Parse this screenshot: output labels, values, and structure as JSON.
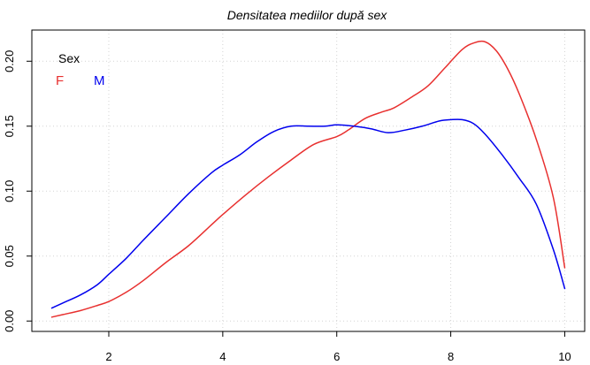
{
  "chart_data": {
    "type": "line",
    "title": "Densitatea mediilor după sex",
    "xlabel": "",
    "ylabel": "",
    "xlim": [
      0.65,
      10.35
    ],
    "ylim": [
      -0.008,
      0.224
    ],
    "x_ticks": [
      2,
      4,
      6,
      8,
      10
    ],
    "x_tick_labels": [
      "2",
      "4",
      "6",
      "8",
      "10"
    ],
    "y_ticks": [
      0.0,
      0.05,
      0.1,
      0.15,
      0.2
    ],
    "y_tick_labels": [
      "0.00",
      "0.05",
      "0.10",
      "0.15",
      "0.20"
    ],
    "grid": true,
    "legend": {
      "title": "Sex",
      "position": "top-left",
      "entries": [
        "F",
        "M"
      ]
    },
    "series": [
      {
        "name": "F",
        "color": "#e8302f",
        "x": [
          1.0,
          1.2,
          1.5,
          1.8,
          2.0,
          2.3,
          2.6,
          3.0,
          3.4,
          3.8,
          4.0,
          4.4,
          4.8,
          5.2,
          5.6,
          6.0,
          6.2,
          6.5,
          6.8,
          7.0,
          7.3,
          7.6,
          7.9,
          8.2,
          8.4,
          8.6,
          8.8,
          9.0,
          9.2,
          9.5,
          9.8,
          10.0
        ],
        "values": [
          0.003,
          0.005,
          0.008,
          0.012,
          0.015,
          0.022,
          0.031,
          0.045,
          0.058,
          0.074,
          0.082,
          0.097,
          0.111,
          0.124,
          0.136,
          0.142,
          0.147,
          0.156,
          0.161,
          0.164,
          0.172,
          0.181,
          0.195,
          0.209,
          0.214,
          0.215,
          0.208,
          0.194,
          0.175,
          0.14,
          0.095,
          0.041
        ]
      },
      {
        "name": "M",
        "color": "#0000ee",
        "x": [
          1.0,
          1.2,
          1.5,
          1.8,
          2.0,
          2.3,
          2.6,
          3.0,
          3.4,
          3.8,
          4.0,
          4.3,
          4.6,
          4.9,
          5.2,
          5.5,
          5.8,
          6.0,
          6.3,
          6.6,
          6.9,
          7.2,
          7.5,
          7.8,
          8.0,
          8.2,
          8.4,
          8.6,
          8.9,
          9.2,
          9.5,
          9.8,
          10.0
        ],
        "values": [
          0.01,
          0.014,
          0.02,
          0.028,
          0.036,
          0.048,
          0.062,
          0.08,
          0.098,
          0.114,
          0.12,
          0.128,
          0.138,
          0.146,
          0.15,
          0.15,
          0.15,
          0.151,
          0.15,
          0.148,
          0.145,
          0.147,
          0.15,
          0.154,
          0.155,
          0.155,
          0.152,
          0.144,
          0.128,
          0.11,
          0.09,
          0.055,
          0.025
        ]
      }
    ]
  }
}
